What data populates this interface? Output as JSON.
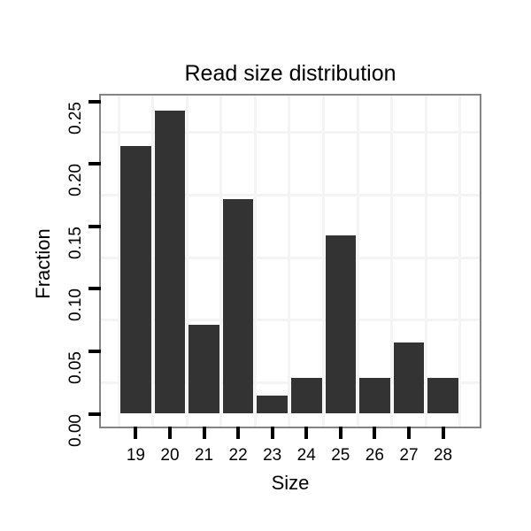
{
  "chart_data": {
    "type": "bar",
    "title": "Read size distribution",
    "xlabel": "Size",
    "ylabel": "Fraction",
    "categories": [
      19,
      20,
      21,
      22,
      23,
      24,
      25,
      26,
      27,
      28
    ],
    "values": [
      0.2143,
      0.2429,
      0.0714,
      0.1714,
      0.0143,
      0.0286,
      0.1429,
      0.0286,
      0.0571,
      0.0286
    ],
    "ylim": [
      0,
      0.26
    ],
    "yticks": [
      0,
      0.05,
      0.1,
      0.15,
      0.2,
      0.25
    ],
    "ytick_labels": [
      "0.00",
      "0.05",
      "0.10",
      "0.15",
      "0.20",
      "0.25"
    ],
    "y_minor_gridlines": [
      0.025,
      0.075,
      0.125,
      0.175,
      0.225
    ],
    "x_minor_gridlines": [
      18.5,
      19.5,
      20.5,
      21.5,
      22.5,
      23.5,
      24.5,
      25.5,
      26.5,
      27.5,
      28.5
    ],
    "grid": "light minor gridlines on white panel",
    "legend_position": "none",
    "colors": {
      "bar": "#333333",
      "panel_border": "#858585",
      "gridline": "#f4f4f4",
      "background": "#ffffff",
      "tick": "#000000",
      "text": "#000000"
    }
  }
}
